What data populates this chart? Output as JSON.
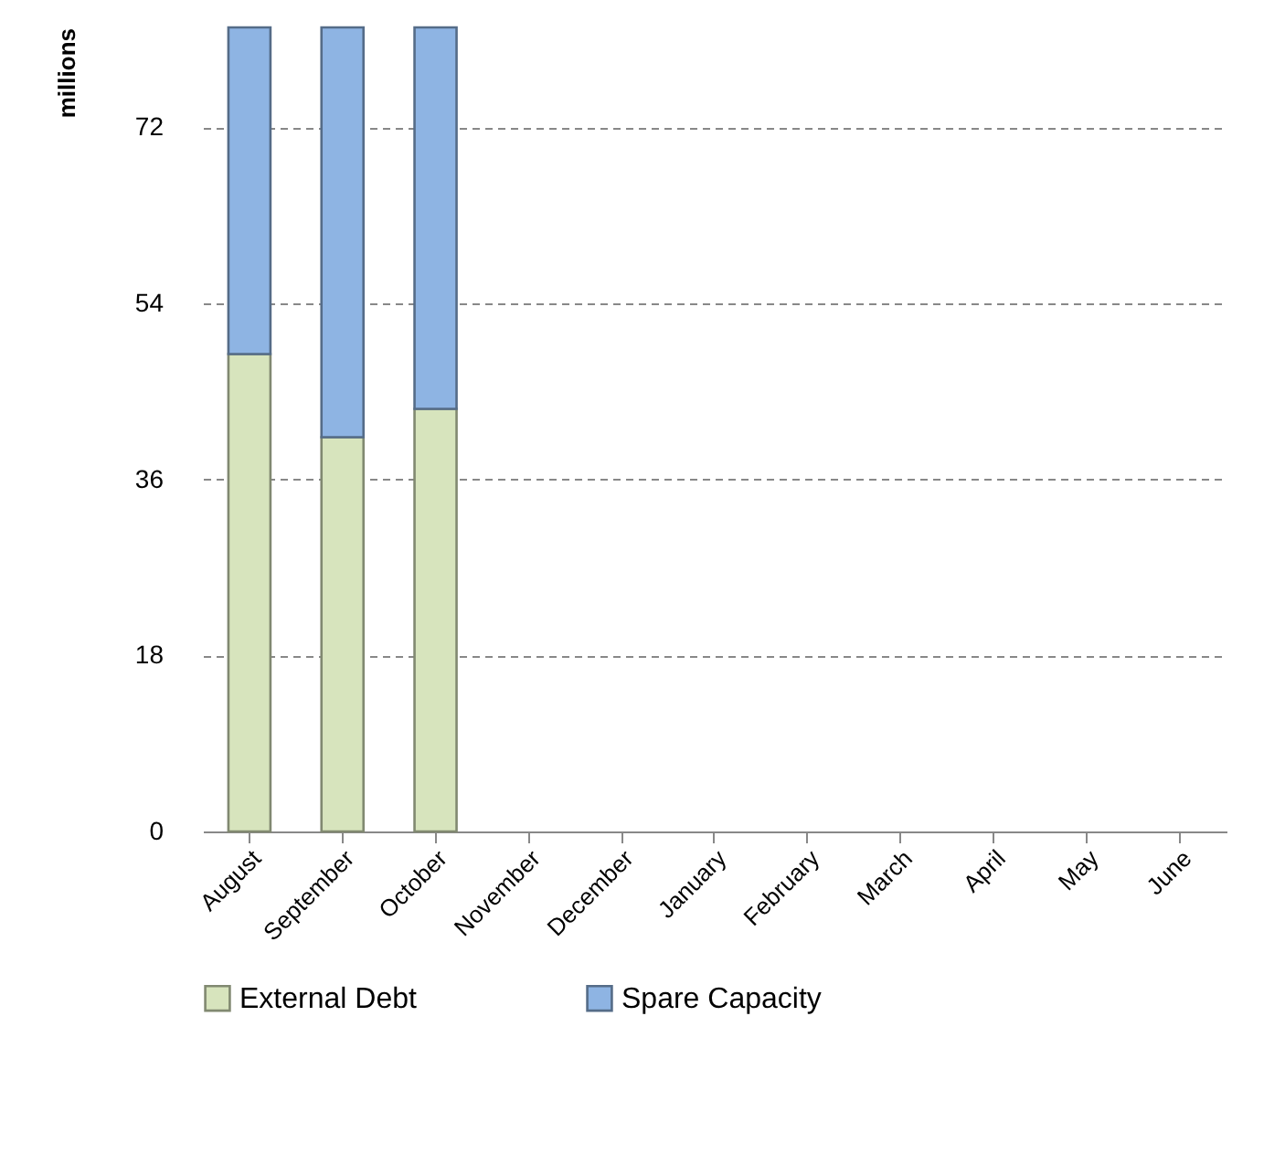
{
  "chart_data": {
    "type": "bar",
    "stacked": true,
    "ylabel": "millions",
    "categories": [
      "August",
      "September",
      "October",
      "November",
      "December",
      "January",
      "February",
      "March",
      "April",
      "May",
      "June"
    ],
    "series": [
      {
        "name": "External Debt",
        "color": "#d7e4bd",
        "values": [
          48.8,
          40.3,
          43.2,
          null,
          null,
          null,
          null,
          null,
          null,
          null,
          null
        ]
      },
      {
        "name": "Spare Capacity",
        "color": "#8eb4e3",
        "values": [
          33.4,
          41.9,
          39.0,
          null,
          null,
          null,
          null,
          null,
          null,
          null,
          null
        ]
      }
    ],
    "ylim": [
      0,
      82.2
    ],
    "yticks": [
      0,
      18,
      36,
      54,
      72
    ],
    "grid": "y",
    "legend": "bottom"
  }
}
